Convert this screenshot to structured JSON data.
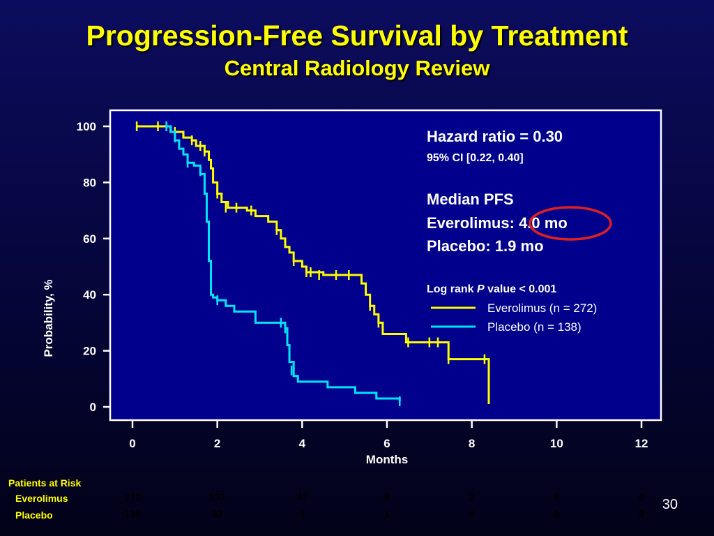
{
  "slide": {
    "title": "Progression-Free Survival by Treatment",
    "subtitle": "Central Radiology Review",
    "page_number": "30"
  },
  "annotations": {
    "hazard_ratio": "Hazard ratio = 0.30",
    "ci": "95% CI [0.22, 0.40]",
    "median_title": "Median PFS",
    "median_everolimus_label": "Everolimus:",
    "median_everolimus_value": "4.0 mo",
    "median_placebo": "Placebo: 1.9 mo",
    "logrank_prefix": "Log rank ",
    "logrank_p": "P",
    "logrank_suffix": " value  < 0.001",
    "highlight_color": "#e02020"
  },
  "risk_table": {
    "title": "Patients at Risk",
    "rows": [
      {
        "label": "Everolimus",
        "values": [
          "272",
          "132",
          "47",
          "8",
          "2",
          "0",
          "0"
        ]
      },
      {
        "label": "Placebo",
        "values": [
          "138",
          "32",
          "4",
          "1",
          "0",
          "0",
          "0"
        ]
      }
    ]
  },
  "chart_data": {
    "type": "line",
    "xlabel": "Months",
    "ylabel": "Probability, %",
    "xlim": [
      0,
      12
    ],
    "ylim": [
      0,
      100
    ],
    "xticks": [
      "0",
      "2",
      "4",
      "6",
      "8",
      "10",
      "12"
    ],
    "yticks": [
      "0",
      "20",
      "40",
      "60",
      "80",
      "100"
    ],
    "legend_position": "right",
    "series": [
      {
        "name": "Everolimus (n = 272)",
        "color": "#ffff00",
        "points": [
          [
            0.1,
            100
          ],
          [
            0.8,
            100
          ],
          [
            0.9,
            98
          ],
          [
            1.2,
            96
          ],
          [
            1.4,
            95
          ],
          [
            1.5,
            93
          ],
          [
            1.7,
            91
          ],
          [
            1.8,
            88
          ],
          [
            1.85,
            85
          ],
          [
            1.9,
            80
          ],
          [
            2.0,
            76
          ],
          [
            2.1,
            73
          ],
          [
            2.25,
            71
          ],
          [
            2.7,
            70
          ],
          [
            2.9,
            68
          ],
          [
            3.2,
            66
          ],
          [
            3.4,
            63
          ],
          [
            3.5,
            60
          ],
          [
            3.6,
            57
          ],
          [
            3.7,
            55
          ],
          [
            3.8,
            52
          ],
          [
            4.0,
            50
          ],
          [
            4.1,
            48
          ],
          [
            4.5,
            47
          ],
          [
            5.3,
            47
          ],
          [
            5.4,
            44
          ],
          [
            5.5,
            40
          ],
          [
            5.6,
            36
          ],
          [
            5.7,
            33
          ],
          [
            5.8,
            30
          ],
          [
            5.9,
            26
          ],
          [
            6.4,
            26
          ],
          [
            6.45,
            23
          ],
          [
            7.4,
            23
          ],
          [
            7.45,
            17
          ],
          [
            8.4,
            17
          ],
          [
            8.4,
            1
          ]
        ],
        "censor_marks": [
          [
            0.1,
            100
          ],
          [
            0.6,
            100
          ],
          [
            1.0,
            98
          ],
          [
            1.4,
            95
          ],
          [
            1.6,
            93
          ],
          [
            1.7,
            91
          ],
          [
            2.0,
            76
          ],
          [
            2.2,
            71
          ],
          [
            2.45,
            71
          ],
          [
            2.8,
            70
          ],
          [
            3.4,
            63
          ],
          [
            3.8,
            52
          ],
          [
            4.1,
            48
          ],
          [
            4.2,
            48
          ],
          [
            4.4,
            47
          ],
          [
            4.8,
            47
          ],
          [
            5.1,
            47
          ],
          [
            5.6,
            36
          ],
          [
            5.8,
            30
          ],
          [
            6.5,
            23
          ],
          [
            7.0,
            23
          ],
          [
            7.2,
            23
          ],
          [
            7.45,
            17
          ],
          [
            8.3,
            17
          ]
        ]
      },
      {
        "name": "Placebo (n = 138)",
        "color": "#00e5ff",
        "points": [
          [
            0.8,
            100
          ],
          [
            0.9,
            98
          ],
          [
            1.0,
            95
          ],
          [
            1.1,
            92
          ],
          [
            1.2,
            90
          ],
          [
            1.3,
            87
          ],
          [
            1.45,
            86
          ],
          [
            1.6,
            83
          ],
          [
            1.7,
            76
          ],
          [
            1.75,
            66
          ],
          [
            1.8,
            52
          ],
          [
            1.85,
            40
          ],
          [
            1.9,
            39
          ],
          [
            2.0,
            38
          ],
          [
            2.2,
            36
          ],
          [
            2.4,
            34
          ],
          [
            2.9,
            34
          ],
          [
            2.9,
            30
          ],
          [
            3.5,
            30
          ],
          [
            3.6,
            28
          ],
          [
            3.65,
            22
          ],
          [
            3.7,
            16
          ],
          [
            3.8,
            11
          ],
          [
            3.9,
            9
          ],
          [
            4.5,
            9
          ],
          [
            4.6,
            7
          ],
          [
            5.2,
            7
          ],
          [
            5.25,
            5
          ],
          [
            5.7,
            5
          ],
          [
            5.75,
            3
          ],
          [
            6.3,
            3
          ],
          [
            6.3,
            2
          ]
        ],
        "censor_marks": [
          [
            0.8,
            100
          ],
          [
            1.0,
            96
          ],
          [
            1.3,
            87
          ],
          [
            1.6,
            84
          ],
          [
            1.7,
            80
          ],
          [
            2.0,
            38
          ],
          [
            3.5,
            30
          ],
          [
            3.6,
            28
          ],
          [
            3.75,
            13
          ],
          [
            6.3,
            2
          ]
        ]
      }
    ]
  }
}
